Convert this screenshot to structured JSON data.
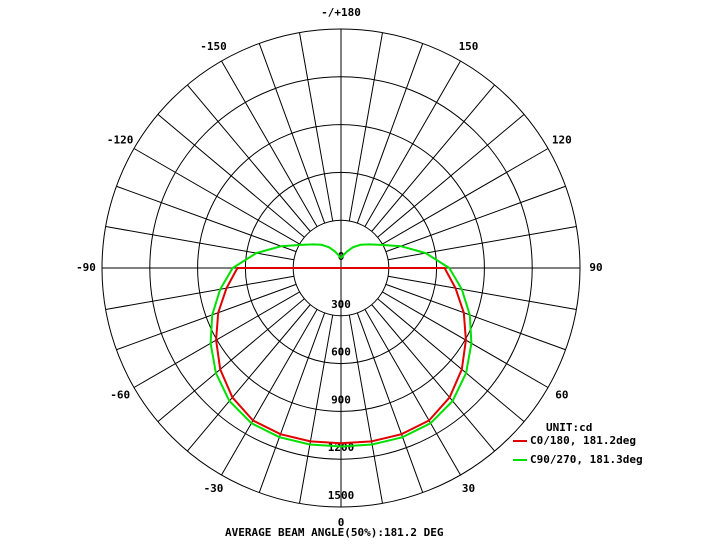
{
  "chart_data": {
    "type": "polar",
    "theta": [
      -180,
      -170,
      -160,
      -150,
      -140,
      -130,
      -120,
      -110,
      -100,
      -90,
      -80,
      -70,
      -60,
      -50,
      -40,
      -30,
      -20,
      -10,
      0,
      10,
      20,
      30,
      40,
      50,
      60,
      70,
      80,
      90,
      100,
      110,
      120,
      130,
      140,
      150,
      160,
      170,
      180
    ],
    "series": [
      {
        "name": "C0/180, 181.2deg",
        "color": "#e00000",
        "values": [
          0,
          0,
          0,
          0,
          0,
          0,
          0,
          0,
          0,
          650,
          730,
          820,
          905,
          990,
          1060,
          1105,
          1110,
          1105,
          1100,
          1105,
          1110,
          1105,
          1060,
          990,
          905,
          820,
          730,
          650,
          0,
          0,
          0,
          0,
          0,
          0,
          0,
          0,
          0
        ]
      },
      {
        "name": "C90/270, 181.3deg",
        "color": "#00e000",
        "values": [
          60,
          80,
          110,
          150,
          190,
          230,
          290,
          400,
          540,
          680,
          770,
          860,
          945,
          1025,
          1090,
          1125,
          1130,
          1125,
          1120,
          1125,
          1130,
          1125,
          1090,
          1025,
          945,
          860,
          770,
          680,
          540,
          400,
          290,
          230,
          190,
          150,
          110,
          80,
          60
        ]
      }
    ],
    "rlim": [
      0,
      1500
    ],
    "rticks": [
      0,
      300,
      600,
      900,
      1200,
      1500
    ],
    "theta_ticks": [
      {
        "value": 180,
        "label": "-/+180"
      },
      -150,
      -120,
      -90,
      -60,
      -30,
      0,
      30,
      60,
      90,
      120,
      150
    ],
    "theta_grid_step": 10,
    "unit_label": "UNIT:cd",
    "footer": "AVERAGE BEAM ANGLE(50%):181.2 DEG"
  }
}
